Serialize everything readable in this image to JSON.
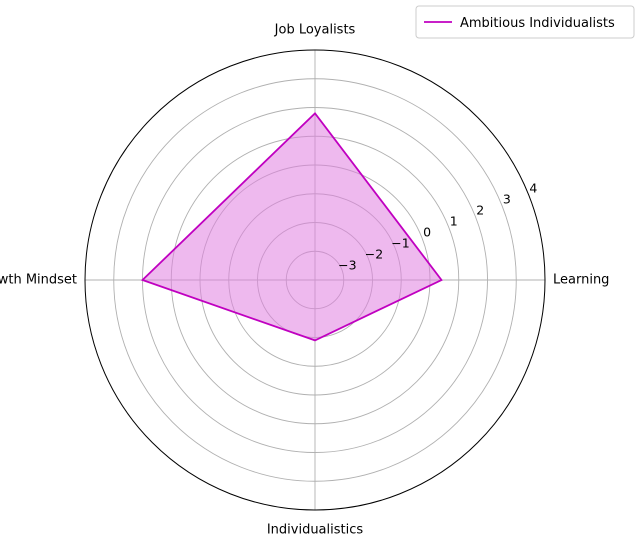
{
  "chart_data": {
    "type": "radar",
    "categories": [
      "Learning",
      "Job Loyalists",
      "Growth Mindset",
      "Individualistics"
    ],
    "series": [
      {
        "name": "Ambitious Individualists",
        "values": [
          0.4,
          1.8,
          2.0,
          -1.9
        ],
        "color": "#c000c0",
        "fill": "#e080e0"
      }
    ],
    "r_ticks": [
      -3,
      -2,
      -1,
      0,
      1,
      2,
      3,
      4
    ],
    "r_tick_labels": [
      "−3",
      "−2",
      "−1",
      "0",
      "1",
      "2",
      "3",
      "4"
    ],
    "rlim": [
      -4,
      4
    ],
    "grid": true,
    "legend_position": "top-right"
  }
}
